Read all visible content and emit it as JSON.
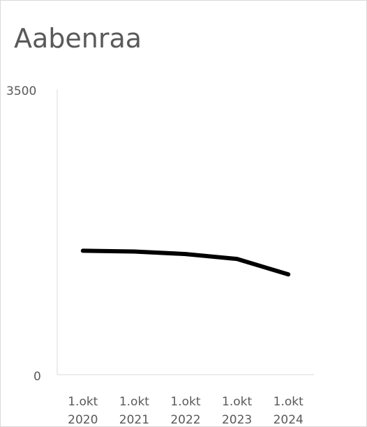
{
  "chart_data": {
    "type": "line",
    "title": "Aabenraa",
    "xlabel": "",
    "ylabel": "",
    "categories": [
      [
        "1.okt",
        "2020"
      ],
      [
        "1.okt",
        "2021"
      ],
      [
        "1.okt",
        "2022"
      ],
      [
        "1.okt",
        "2023"
      ],
      [
        "1.okt",
        "2024"
      ]
    ],
    "ylim": [
      0,
      3500
    ],
    "yticks": [
      "3500",
      "0"
    ],
    "grid": false,
    "legend": "none",
    "series": [
      {
        "values": [
          1520,
          1510,
          1480,
          1420,
          1230
        ]
      }
    ],
    "colors": {
      "line": "#000000",
      "axis": "#d9d9d9",
      "text": "#595959",
      "frame": "#d9d9d9"
    }
  }
}
